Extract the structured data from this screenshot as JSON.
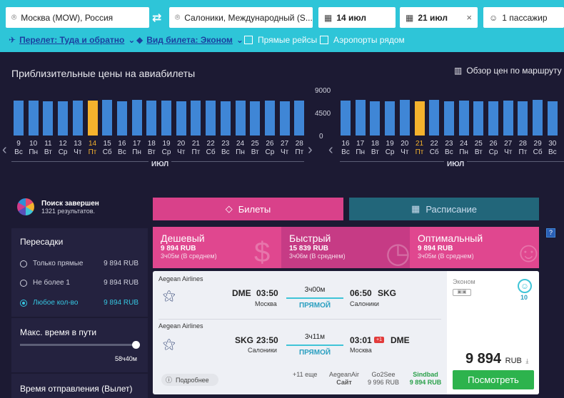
{
  "search": {
    "origin": "Москва (MOW), Россия",
    "destination": "Салоники, Международный (S...",
    "depart_date": "14 июл",
    "return_date": "21 июл",
    "clear": "×",
    "passengers": "1 пассажир"
  },
  "options": {
    "trip_type": "Перелет: Туда и обратно",
    "ticket_class": "Вид билета: Эконом",
    "direct": "Прямые рейсы",
    "nearby": "Аэропорты рядом"
  },
  "calendar": {
    "title": "Приблизительные цены на авиабилеты",
    "overview": "Обзор цен по маршруту Мо",
    "month": "ИЮЛ",
    "y_ticks": [
      "9000",
      "4500",
      "0"
    ],
    "left": {
      "days": [
        {
          "n": "9",
          "d": "Вс"
        },
        {
          "n": "10",
          "d": "Пн"
        },
        {
          "n": "11",
          "d": "Вт"
        },
        {
          "n": "12",
          "d": "Ср"
        },
        {
          "n": "13",
          "d": "Чт"
        },
        {
          "n": "14",
          "d": "Пт"
        },
        {
          "n": "15",
          "d": "Сб"
        },
        {
          "n": "16",
          "d": "Вс"
        },
        {
          "n": "17",
          "d": "Пн"
        },
        {
          "n": "18",
          "d": "Вт"
        },
        {
          "n": "19",
          "d": "Ср"
        },
        {
          "n": "20",
          "d": "Чт"
        },
        {
          "n": "21",
          "d": "Пт"
        },
        {
          "n": "22",
          "d": "Сб"
        },
        {
          "n": "23",
          "d": "Вс"
        },
        {
          "n": "24",
          "d": "Пн"
        },
        {
          "n": "25",
          "d": "Вт"
        },
        {
          "n": "26",
          "d": "Ср"
        },
        {
          "n": "27",
          "d": "Чт"
        },
        {
          "n": "28",
          "d": "Пт"
        }
      ],
      "selected_index": 5
    },
    "right": {
      "days": [
        {
          "n": "16",
          "d": "Вс"
        },
        {
          "n": "17",
          "d": "Пн"
        },
        {
          "n": "18",
          "d": "Вт"
        },
        {
          "n": "19",
          "d": "Ср"
        },
        {
          "n": "20",
          "d": "Чт"
        },
        {
          "n": "21",
          "d": "Пт"
        },
        {
          "n": "22",
          "d": "Сб"
        },
        {
          "n": "23",
          "d": "Вс"
        },
        {
          "n": "24",
          "d": "Пн"
        },
        {
          "n": "25",
          "d": "Вт"
        },
        {
          "n": "26",
          "d": "Ср"
        },
        {
          "n": "27",
          "d": "Чт"
        },
        {
          "n": "28",
          "d": "Пт"
        },
        {
          "n": "29",
          "d": "Сб"
        },
        {
          "n": "30",
          "d": "Вс"
        }
      ],
      "selected_index": 5
    }
  },
  "chart_data": {
    "type": "bar",
    "ylim": [
      0,
      9000
    ],
    "y_ticks": [
      0,
      4500,
      9000
    ],
    "series": [
      {
        "categories": [
          "9",
          "10",
          "11",
          "12",
          "13",
          "14",
          "15",
          "16",
          "17",
          "18",
          "19",
          "20",
          "21",
          "22",
          "23",
          "24",
          "25",
          "26",
          "27",
          "28"
        ],
        "values": [
          7100,
          7100,
          7000,
          7000,
          7100,
          7100,
          7300,
          7000,
          7200,
          7100,
          7100,
          7000,
          7100,
          7100,
          7000,
          7100,
          7000,
          7100,
          7000,
          7100
        ]
      },
      {
        "categories": [
          "16",
          "17",
          "18",
          "19",
          "20",
          "21",
          "22",
          "23",
          "24",
          "25",
          "26",
          "27",
          "28",
          "29",
          "30"
        ],
        "values": [
          7100,
          7200,
          7000,
          7000,
          7200,
          7000,
          7200,
          7000,
          7100,
          7000,
          7000,
          7100,
          7000,
          7200,
          7000
        ]
      }
    ]
  },
  "status": {
    "title": "Поиск завершен",
    "count": "1321 результатов."
  },
  "tabs": {
    "tickets": "Билеты",
    "schedule": "Расписание"
  },
  "filters": {
    "stops_title": "Пересадки",
    "stops": [
      {
        "label": "Только прямые",
        "price": "9 894 RUB"
      },
      {
        "label": "Не более 1",
        "price": "9 894 RUB"
      },
      {
        "label": "Любое кол-во",
        "price": "9 894 RUB"
      }
    ],
    "maxtime_title": "Макс. время в пути",
    "maxtime_value": "58ч40м",
    "depart_title": "Время отправления (Вылет)"
  },
  "categories": [
    {
      "name": "Дешевый",
      "price": "9 894 RUB",
      "sub": "3ч05м (В среднем)"
    },
    {
      "name": "Быстрый",
      "price": "15 839 RUB",
      "sub": "3ч06м (В среднем)"
    },
    {
      "name": "Оптимальный",
      "price": "9 894 RUB",
      "sub": "3ч05м (В среднем)"
    }
  ],
  "result": {
    "out": {
      "airline": "Aegean Airlines",
      "from_code": "DME",
      "from_time": "03:50",
      "from_city": "Москва",
      "duration": "3ч00м",
      "type": "ПРЯМОЙ",
      "to_time": "06:50",
      "to_code": "SKG",
      "to_city": "Салоники"
    },
    "back": {
      "airline": "Aegean Airlines",
      "from_code": "SKG",
      "from_time": "23:50",
      "from_city": "Салоники",
      "duration": "3ч11м",
      "type": "ПРЯМОЙ",
      "to_time": "03:01",
      "plus_day": "+1",
      "to_code": "DME",
      "to_city": "Москва"
    },
    "class": "Эконом",
    "seats": "10",
    "more": "Подробнее",
    "extra": "+11 еще",
    "provider1": {
      "name": "AegeanAir",
      "price": "Сайт"
    },
    "provider2": {
      "name": "Go2See",
      "price": "9 996 RUB"
    },
    "provider3": {
      "name": "Sindbad",
      "price": "9 894 RUB"
    },
    "price": "9 894",
    "currency": "RUB",
    "button": "Посмотреть"
  }
}
